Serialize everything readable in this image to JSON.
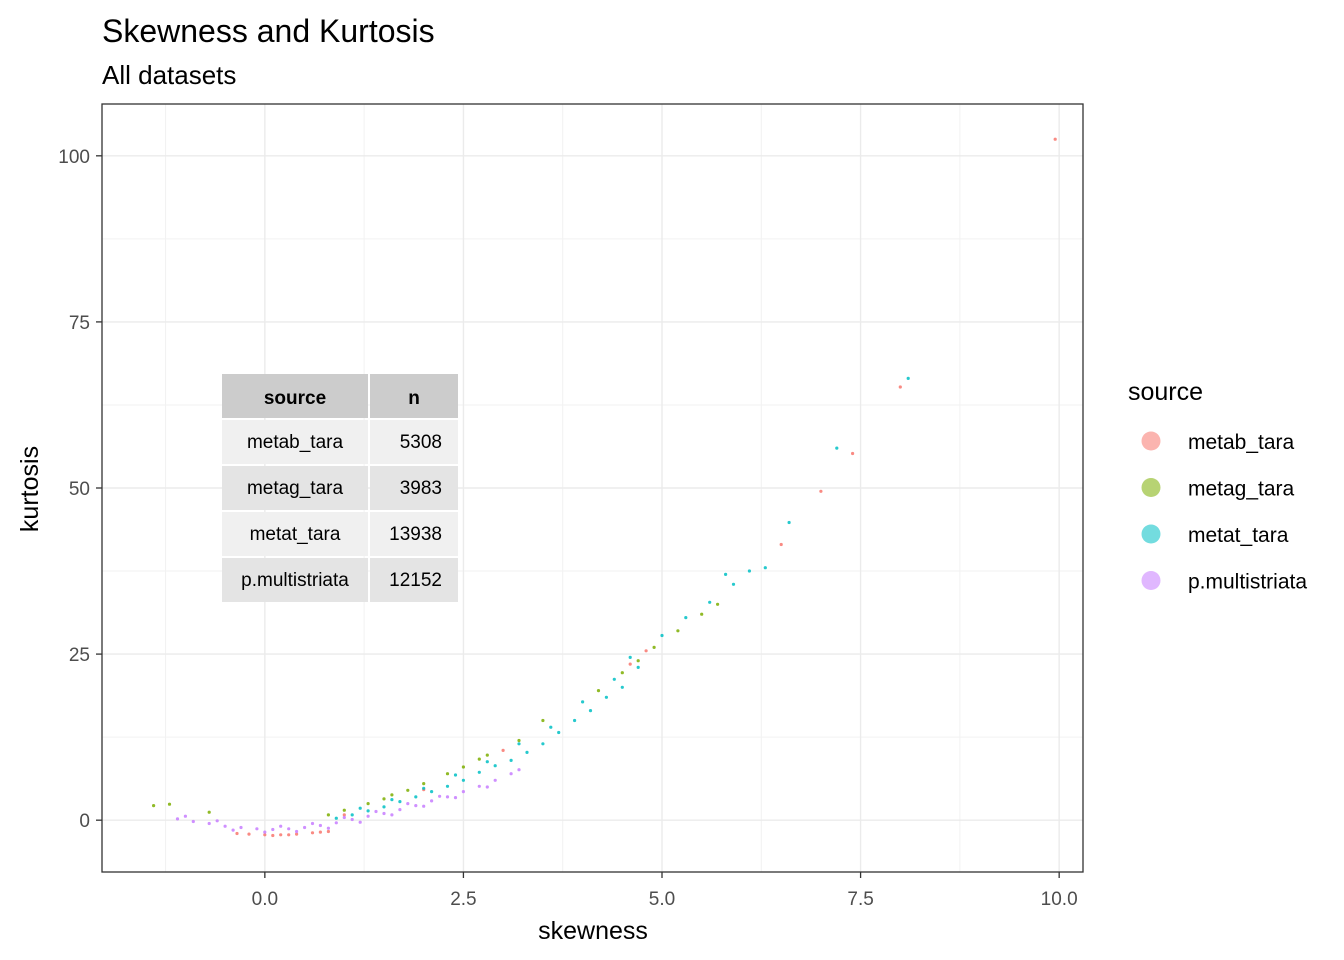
{
  "chart_data": {
    "type": "scatter",
    "title": "Skewness and Kurtosis",
    "subtitle": "All datasets",
    "xlabel": "skewness",
    "ylabel": "kurtosis",
    "xlim": [
      -2.05,
      10.3
    ],
    "ylim": [
      -7.8,
      107.8
    ],
    "x_ticks": [
      0.0,
      2.5,
      5.0,
      7.5,
      10.0
    ],
    "x_tick_labels": [
      "0.0",
      "2.5",
      "5.0",
      "7.5",
      "10.0"
    ],
    "y_ticks": [
      0,
      25,
      50,
      75,
      100
    ],
    "y_tick_labels": [
      "0",
      "25",
      "50",
      "75",
      "100"
    ],
    "grid": true,
    "legend": {
      "title": "source",
      "position": "right",
      "entries": [
        "metab_tara",
        "metag_tara",
        "metat_tara",
        "p.multistriata"
      ]
    },
    "series": [
      {
        "name": "metab_tara",
        "color": "#F8766D",
        "points": [
          [
            9.95,
            102.5
          ],
          [
            8.0,
            65.2
          ],
          [
            7.4,
            55.2
          ],
          [
            7.0,
            49.5
          ],
          [
            6.5,
            41.5
          ],
          [
            4.8,
            25.5
          ],
          [
            4.6,
            23.5
          ],
          [
            3.0,
            10.5
          ],
          [
            2.0,
            4.6
          ],
          [
            1.0,
            0.8
          ],
          [
            0.8,
            -1.7
          ],
          [
            0.6,
            -1.9
          ],
          [
            0.4,
            -2.1
          ],
          [
            0.2,
            -2.2
          ],
          [
            0.0,
            -2.2
          ],
          [
            -0.2,
            -2.1
          ],
          [
            -0.35,
            -2.0
          ],
          [
            0.7,
            -1.8
          ],
          [
            0.3,
            -2.2
          ],
          [
            0.1,
            -2.3
          ]
        ]
      },
      {
        "name": "metag_tara",
        "color": "#7CAE00",
        "points": [
          [
            5.7,
            32.5
          ],
          [
            5.5,
            31.0
          ],
          [
            5.2,
            28.5
          ],
          [
            4.9,
            26.0
          ],
          [
            4.7,
            24.0
          ],
          [
            3.5,
            15.0
          ],
          [
            3.2,
            12.0
          ],
          [
            2.8,
            9.8
          ],
          [
            2.5,
            8.0
          ],
          [
            2.3,
            7.0
          ],
          [
            2.0,
            5.5
          ],
          [
            1.8,
            4.5
          ],
          [
            1.5,
            3.2
          ],
          [
            1.3,
            2.5
          ],
          [
            1.0,
            1.5
          ],
          [
            0.8,
            0.8
          ],
          [
            1.6,
            3.8
          ],
          [
            2.7,
            9.2
          ],
          [
            4.2,
            19.5
          ],
          [
            4.5,
            22.2
          ],
          [
            -0.7,
            1.2
          ],
          [
            -1.2,
            2.4
          ],
          [
            -1.4,
            2.2
          ]
        ]
      },
      {
        "name": "metat_tara",
        "color": "#00BFC4",
        "points": [
          [
            8.1,
            66.5
          ],
          [
            7.2,
            56.0
          ],
          [
            6.6,
            44.8
          ],
          [
            6.3,
            38.0
          ],
          [
            6.1,
            37.5
          ],
          [
            5.9,
            35.5
          ],
          [
            5.8,
            37.0
          ],
          [
            5.6,
            32.8
          ],
          [
            5.3,
            30.5
          ],
          [
            5.0,
            27.8
          ],
          [
            4.7,
            23.0
          ],
          [
            4.5,
            20.0
          ],
          [
            4.3,
            18.5
          ],
          [
            4.1,
            16.5
          ],
          [
            3.9,
            15.0
          ],
          [
            3.7,
            13.2
          ],
          [
            3.5,
            11.5
          ],
          [
            3.3,
            10.2
          ],
          [
            3.1,
            9.0
          ],
          [
            2.9,
            8.2
          ],
          [
            2.7,
            7.2
          ],
          [
            2.5,
            6.0
          ],
          [
            2.3,
            5.1
          ],
          [
            2.1,
            4.3
          ],
          [
            1.9,
            3.5
          ],
          [
            1.7,
            2.8
          ],
          [
            1.5,
            2.0
          ],
          [
            1.3,
            1.4
          ],
          [
            1.1,
            0.8
          ],
          [
            0.9,
            0.3
          ],
          [
            4.6,
            24.5
          ],
          [
            4.4,
            21.2
          ],
          [
            4.0,
            17.8
          ],
          [
            3.6,
            14.0
          ],
          [
            3.2,
            11.5
          ],
          [
            2.8,
            8.8
          ],
          [
            2.4,
            6.8
          ],
          [
            2.0,
            4.8
          ],
          [
            1.6,
            3.1
          ],
          [
            1.2,
            1.8
          ]
        ]
      },
      {
        "name": "p.multistriata",
        "color": "#C77CFF",
        "points": [
          [
            -1.1,
            0.2
          ],
          [
            -0.9,
            -0.2
          ],
          [
            -0.7,
            -0.5
          ],
          [
            -0.5,
            -0.9
          ],
          [
            -0.3,
            -1.1
          ],
          [
            -0.1,
            -1.3
          ],
          [
            0.1,
            -1.4
          ],
          [
            0.3,
            -1.3
          ],
          [
            0.5,
            -1.1
          ],
          [
            0.7,
            -0.8
          ],
          [
            0.9,
            -0.4
          ],
          [
            1.1,
            0.1
          ],
          [
            1.3,
            0.6
          ],
          [
            1.5,
            1.0
          ],
          [
            1.7,
            1.6
          ],
          [
            1.9,
            2.2
          ],
          [
            2.1,
            2.9
          ],
          [
            2.3,
            3.5
          ],
          [
            2.5,
            4.3
          ],
          [
            2.7,
            5.1
          ],
          [
            2.9,
            6.0
          ],
          [
            3.1,
            7.0
          ],
          [
            3.2,
            7.6
          ],
          [
            -0.4,
            -1.5
          ],
          [
            0.0,
            -1.8
          ],
          [
            0.4,
            -1.7
          ],
          [
            0.8,
            -1.2
          ],
          [
            1.2,
            -0.3
          ],
          [
            1.6,
            0.8
          ],
          [
            2.0,
            2.1
          ],
          [
            2.4,
            3.4
          ],
          [
            2.8,
            5.0
          ],
          [
            -1.0,
            0.6
          ],
          [
            -0.6,
            -0.1
          ],
          [
            0.2,
            -0.9
          ],
          [
            0.6,
            -0.5
          ],
          [
            1.0,
            0.4
          ],
          [
            1.4,
            1.3
          ],
          [
            1.8,
            2.5
          ],
          [
            2.2,
            3.6
          ]
        ]
      }
    ],
    "inset_table": {
      "headers": [
        "source",
        "n"
      ],
      "rows": [
        [
          "metab_tara",
          "5308"
        ],
        [
          "metag_tara",
          "3983"
        ],
        [
          "metat_tara",
          "13938"
        ],
        [
          "p.multistriata",
          "12152"
        ]
      ]
    }
  }
}
